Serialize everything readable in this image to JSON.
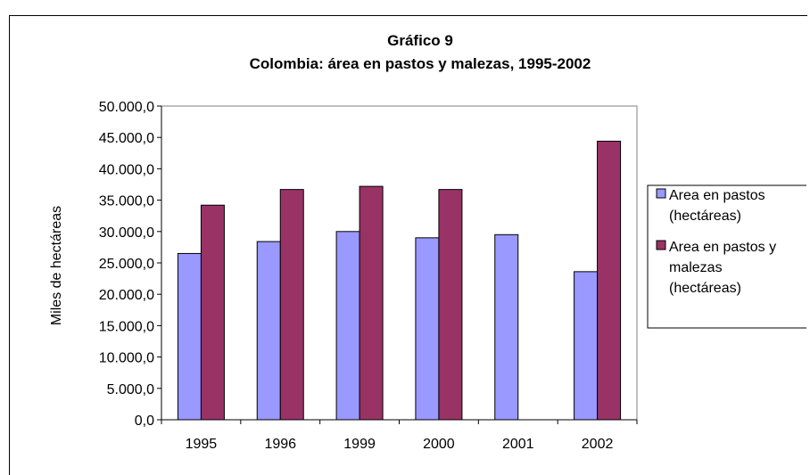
{
  "chart_data": {
    "type": "bar",
    "title": "Gráfico 9",
    "subtitle": "Colombia: área en pastos y malezas, 1995-2002",
    "xlabel": "",
    "ylabel": "Miles de hectáreas",
    "categories": [
      "1995",
      "1996",
      "1999",
      "2000",
      "2001",
      "2002"
    ],
    "series": [
      {
        "name": "Area en pastos (hectáreas)",
        "name_lines": [
          "Area en pastos",
          "(hectáreas)"
        ],
        "color": "#9999ff",
        "values": [
          26500,
          28400,
          30000,
          29000,
          29500,
          23600
        ]
      },
      {
        "name": "Area en pastos y malezas (hectáreas)",
        "name_lines": [
          "Area en pastos y",
          "malezas",
          "(hectáreas)"
        ],
        "color": "#993366",
        "values": [
          34200,
          36700,
          37200,
          36700,
          null,
          44400
        ]
      }
    ],
    "ylim": [
      0,
      50000
    ],
    "yticks": [
      "0,0",
      "5.000,0",
      "10.000,0",
      "15.000,0",
      "20.000,0",
      "25.000,0",
      "30.000,0",
      "35.000,0",
      "40.000,0",
      "45.000,0",
      "50.000,0"
    ],
    "grid": false,
    "legend_position": "right",
    "colors": {
      "plot_border": "#808080",
      "axis": "#000000"
    }
  }
}
